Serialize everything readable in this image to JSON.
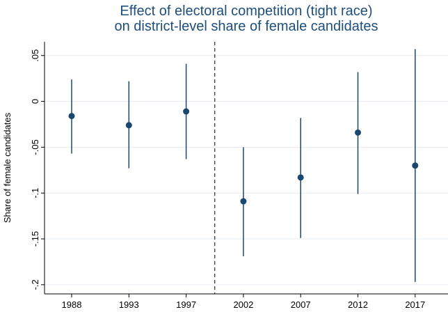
{
  "chart_data": {
    "type": "scatter",
    "title_lines": [
      "Effect of electoral competition (tight race)",
      "on district-level share of female candidates"
    ],
    "xlabel": "",
    "ylabel": "Share of female candidates",
    "categories": [
      "1988",
      "1993",
      "1997",
      "2002",
      "2007",
      "2012",
      "2017"
    ],
    "ylim": [
      -0.21,
      0.065
    ],
    "yticks": [
      {
        "value": 0.05,
        "label": ".05"
      },
      {
        "value": 0,
        "label": "0"
      },
      {
        "value": -0.05,
        "label": "-.05"
      },
      {
        "value": -0.1,
        "label": "-.1"
      },
      {
        "value": -0.15,
        "label": "-.15"
      },
      {
        "value": -0.2,
        "label": "-.2"
      }
    ],
    "series": [
      {
        "estimate": [
          -0.016,
          -0.026,
          -0.011,
          -0.109,
          -0.083,
          -0.034,
          -0.07
        ],
        "ci_low": [
          -0.057,
          -0.073,
          -0.063,
          -0.169,
          -0.149,
          -0.101,
          -0.197
        ],
        "ci_high": [
          0.024,
          0.022,
          0.041,
          -0.05,
          -0.018,
          0.032,
          0.057
        ]
      }
    ],
    "reference_line": {
      "between": [
        "1997",
        "2002"
      ],
      "style": "dashed"
    },
    "grid": true,
    "colors": {
      "title": "#1e4e7a",
      "marker": "#1a476f",
      "ci": "#1a476f",
      "grid": "#e6ecf2",
      "reference": "#000000"
    }
  }
}
